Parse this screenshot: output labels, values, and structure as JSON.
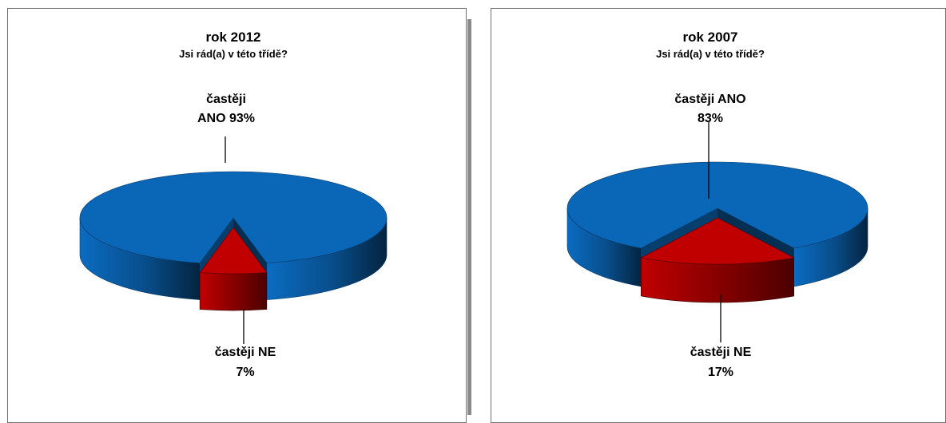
{
  "chart_data": [
    {
      "type": "pie",
      "title": "rok 2012",
      "subtitle": "Jsi rád(a) v této třídě?",
      "categories": [
        "častěji ANO",
        "častěji NE"
      ],
      "values": [
        93,
        7
      ],
      "labels": [
        {
          "line1": "častěji",
          "line2": "ANO 93%"
        },
        {
          "line1": "častěji NE",
          "line2": "7%"
        }
      ],
      "colors": [
        "#0a67b8",
        "#c00000"
      ],
      "exploded": "častěji NE",
      "style": "3d"
    },
    {
      "type": "pie",
      "title": "rok 2007",
      "subtitle": "Jsi rád(a) v této třídě?",
      "categories": [
        "častěji ANO",
        "častěji NE"
      ],
      "values": [
        83,
        17
      ],
      "labels": [
        {
          "line1": "častěji ANO",
          "line2": "83%"
        },
        {
          "line1": "častěji NE",
          "line2": "17%"
        }
      ],
      "colors": [
        "#0a67b8",
        "#c00000"
      ],
      "exploded": "častěji NE",
      "style": "3d"
    }
  ]
}
